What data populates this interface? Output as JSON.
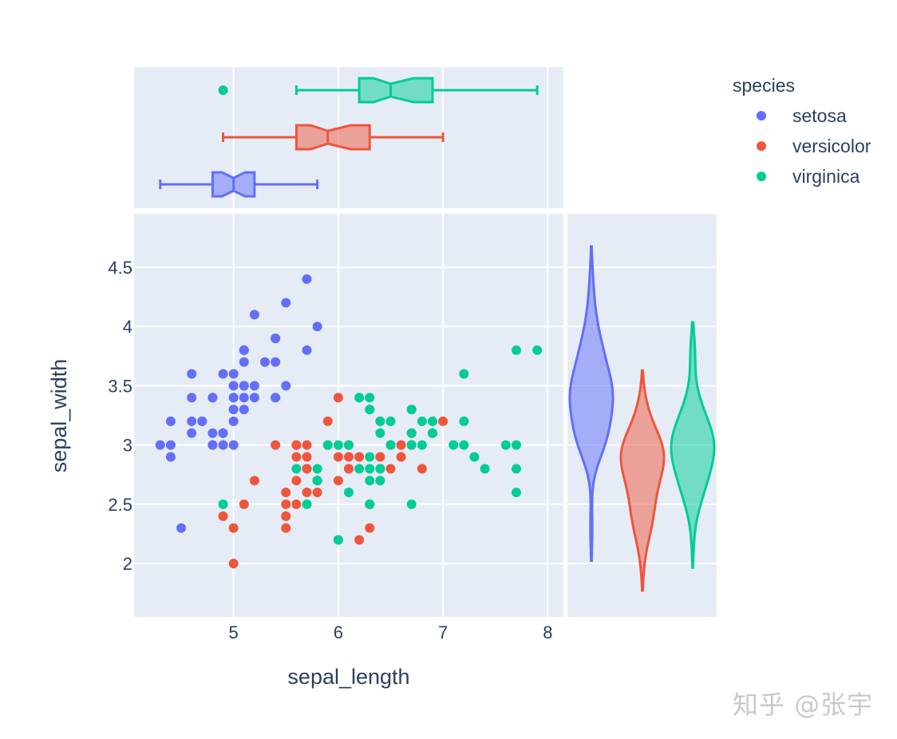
{
  "chart_data": {
    "type": "scatter",
    "xlabel": "sepal_length",
    "ylabel": "sepal_width",
    "legend": {
      "title": "species",
      "placement": "top-right"
    },
    "marginal_x": "box (notched)",
    "marginal_y": "violin",
    "grid": true,
    "xlim": [
      4.05,
      8.15
    ],
    "ylim": [
      1.55,
      4.95
    ],
    "x_ticks": [
      "5",
      "6",
      "7",
      "8"
    ],
    "y_ticks": [
      "2",
      "2.5",
      "3",
      "3.5",
      "4",
      "4.5"
    ],
    "series": [
      {
        "name": "setosa",
        "color": "#636efa",
        "points": [
          [
            5.1,
            3.5
          ],
          [
            4.9,
            3.0
          ],
          [
            4.7,
            3.2
          ],
          [
            4.6,
            3.1
          ],
          [
            5.0,
            3.6
          ],
          [
            5.4,
            3.9
          ],
          [
            4.6,
            3.4
          ],
          [
            5.0,
            3.4
          ],
          [
            4.4,
            2.9
          ],
          [
            4.9,
            3.1
          ],
          [
            5.4,
            3.7
          ],
          [
            4.8,
            3.4
          ],
          [
            4.8,
            3.0
          ],
          [
            4.3,
            3.0
          ],
          [
            5.8,
            4.0
          ],
          [
            5.7,
            4.4
          ],
          [
            5.4,
            3.9
          ],
          [
            5.1,
            3.5
          ],
          [
            5.7,
            3.8
          ],
          [
            5.1,
            3.8
          ],
          [
            5.4,
            3.4
          ],
          [
            5.1,
            3.7
          ],
          [
            4.6,
            3.6
          ],
          [
            5.1,
            3.3
          ],
          [
            4.8,
            3.4
          ],
          [
            5.0,
            3.0
          ],
          [
            5.0,
            3.4
          ],
          [
            5.2,
            3.5
          ],
          [
            5.2,
            3.4
          ],
          [
            4.7,
            3.2
          ],
          [
            4.8,
            3.1
          ],
          [
            5.4,
            3.4
          ],
          [
            5.2,
            4.1
          ],
          [
            5.5,
            4.2
          ],
          [
            4.9,
            3.1
          ],
          [
            5.0,
            3.2
          ],
          [
            5.5,
            3.5
          ],
          [
            4.9,
            3.6
          ],
          [
            4.4,
            3.0
          ],
          [
            5.1,
            3.4
          ],
          [
            5.0,
            3.5
          ],
          [
            4.5,
            2.3
          ],
          [
            4.4,
            3.2
          ],
          [
            5.0,
            3.5
          ],
          [
            5.1,
            3.8
          ],
          [
            4.8,
            3.0
          ],
          [
            5.1,
            3.8
          ],
          [
            4.6,
            3.2
          ],
          [
            5.3,
            3.7
          ],
          [
            5.0,
            3.3
          ]
        ],
        "box": {
          "min": 4.3,
          "q1": 4.8,
          "median": 5.0,
          "q3": 5.2,
          "max": 5.8,
          "outliers": []
        },
        "violin": {
          "min": 2.3,
          "max": 4.4
        }
      },
      {
        "name": "versicolor",
        "color": "#ef553b",
        "points": [
          [
            7.0,
            3.2
          ],
          [
            6.4,
            3.2
          ],
          [
            6.9,
            3.1
          ],
          [
            5.5,
            2.3
          ],
          [
            6.5,
            2.8
          ],
          [
            5.7,
            2.8
          ],
          [
            6.3,
            3.3
          ],
          [
            4.9,
            2.4
          ],
          [
            6.6,
            2.9
          ],
          [
            5.2,
            2.7
          ],
          [
            5.0,
            2.0
          ],
          [
            5.9,
            3.0
          ],
          [
            6.0,
            2.2
          ],
          [
            6.1,
            2.9
          ],
          [
            5.6,
            2.9
          ],
          [
            6.7,
            3.1
          ],
          [
            5.6,
            3.0
          ],
          [
            5.8,
            2.7
          ],
          [
            6.2,
            2.2
          ],
          [
            5.6,
            2.5
          ],
          [
            5.9,
            3.2
          ],
          [
            6.1,
            2.8
          ],
          [
            6.3,
            2.5
          ],
          [
            6.1,
            2.8
          ],
          [
            6.4,
            2.9
          ],
          [
            6.6,
            3.0
          ],
          [
            6.8,
            2.8
          ],
          [
            6.7,
            3.0
          ],
          [
            6.0,
            2.9
          ],
          [
            5.7,
            2.6
          ],
          [
            5.5,
            2.4
          ],
          [
            5.5,
            2.4
          ],
          [
            5.8,
            2.7
          ],
          [
            6.0,
            2.7
          ],
          [
            5.4,
            3.0
          ],
          [
            6.0,
            3.4
          ],
          [
            6.7,
            3.1
          ],
          [
            6.3,
            2.3
          ],
          [
            5.6,
            3.0
          ],
          [
            5.5,
            2.5
          ],
          [
            5.5,
            2.6
          ],
          [
            6.1,
            3.0
          ],
          [
            5.8,
            2.6
          ],
          [
            5.0,
            2.3
          ],
          [
            5.6,
            2.7
          ],
          [
            5.7,
            3.0
          ],
          [
            5.7,
            2.9
          ],
          [
            6.2,
            2.9
          ],
          [
            5.1,
            2.5
          ],
          [
            5.7,
            2.8
          ]
        ],
        "box": {
          "min": 4.9,
          "q1": 5.6,
          "median": 5.9,
          "q3": 6.3,
          "max": 7.0,
          "outliers": []
        },
        "violin": {
          "min": 2.0,
          "max": 3.4
        }
      },
      {
        "name": "virginica",
        "color": "#00cc96",
        "points": [
          [
            6.3,
            3.3
          ],
          [
            5.8,
            2.7
          ],
          [
            7.1,
            3.0
          ],
          [
            6.3,
            2.9
          ],
          [
            6.5,
            3.0
          ],
          [
            7.6,
            3.0
          ],
          [
            4.9,
            2.5
          ],
          [
            7.3,
            2.9
          ],
          [
            6.7,
            2.5
          ],
          [
            7.2,
            3.6
          ],
          [
            6.5,
            3.2
          ],
          [
            6.4,
            2.7
          ],
          [
            6.8,
            3.0
          ],
          [
            5.7,
            2.5
          ],
          [
            5.8,
            2.8
          ],
          [
            6.4,
            3.2
          ],
          [
            6.5,
            3.0
          ],
          [
            7.7,
            3.8
          ],
          [
            7.7,
            2.6
          ],
          [
            6.0,
            2.2
          ],
          [
            6.9,
            3.2
          ],
          [
            5.6,
            2.8
          ],
          [
            7.7,
            2.8
          ],
          [
            6.3,
            2.7
          ],
          [
            6.7,
            3.3
          ],
          [
            7.2,
            3.2
          ],
          [
            6.2,
            2.8
          ],
          [
            6.1,
            3.0
          ],
          [
            6.4,
            2.8
          ],
          [
            7.2,
            3.0
          ],
          [
            7.4,
            2.8
          ],
          [
            7.9,
            3.8
          ],
          [
            6.4,
            2.8
          ],
          [
            6.3,
            2.8
          ],
          [
            6.1,
            2.6
          ],
          [
            7.7,
            3.0
          ],
          [
            6.3,
            3.4
          ],
          [
            6.4,
            3.1
          ],
          [
            6.0,
            3.0
          ],
          [
            6.9,
            3.1
          ],
          [
            6.7,
            3.1
          ],
          [
            6.9,
            3.1
          ],
          [
            5.8,
            2.7
          ],
          [
            6.8,
            3.2
          ],
          [
            6.7,
            3.3
          ],
          [
            6.7,
            3.0
          ],
          [
            6.3,
            2.5
          ],
          [
            6.5,
            3.0
          ],
          [
            6.2,
            3.4
          ],
          [
            5.9,
            3.0
          ]
        ],
        "box": {
          "min": 5.6,
          "q1": 6.2,
          "median": 6.5,
          "q3": 6.9,
          "max": 7.9,
          "outliers": [
            4.9
          ]
        },
        "violin": {
          "min": 2.2,
          "max": 3.8
        }
      }
    ]
  },
  "watermark": "知乎 @张宇"
}
